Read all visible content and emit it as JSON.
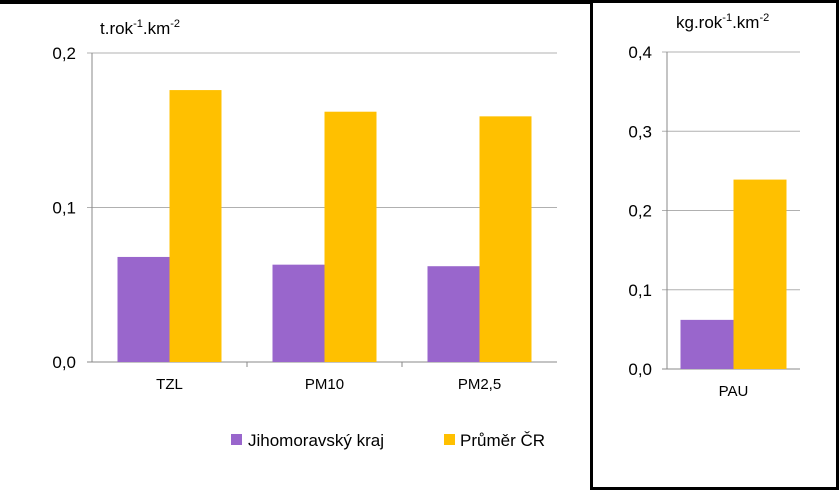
{
  "colors": {
    "series1": "#9966cc",
    "series2": "#ffc000",
    "grid": "#b0b0b0",
    "frame": "#000000"
  },
  "legend": {
    "position": "bottom",
    "items": [
      {
        "label": "Jihomoravský kraj",
        "color": "#9966cc"
      },
      {
        "label": "Průměr ČR",
        "color": "#ffc000"
      }
    ]
  },
  "chart_data": [
    {
      "type": "bar",
      "unit": {
        "base1": "t.rok",
        "exp1": "-1",
        "base2": ".km",
        "exp2": "-2"
      },
      "categories": [
        "TZL",
        "PM10",
        "PM2,5"
      ],
      "series": [
        {
          "name": "Jihomoravský kraj",
          "values": [
            0.068,
            0.063,
            0.062
          ]
        },
        {
          "name": "Průměr ČR",
          "values": [
            0.176,
            0.162,
            0.159
          ]
        }
      ],
      "ylim": [
        0,
        0.2
      ],
      "yticks": [
        "0,0",
        "0,1",
        "0,2"
      ],
      "grid": true
    },
    {
      "type": "bar",
      "unit": {
        "base1": "kg.rok",
        "exp1": "-1",
        "base2": ".km",
        "exp2": "-2"
      },
      "categories": [
        "PAU"
      ],
      "series": [
        {
          "name": "Jihomoravský kraj",
          "values": [
            0.062
          ]
        },
        {
          "name": "Průměr ČR",
          "values": [
            0.239
          ]
        }
      ],
      "ylim": [
        0,
        0.4
      ],
      "yticks": [
        "0,0",
        "0,1",
        "0,2",
        "0,3",
        "0,4"
      ],
      "grid": true
    }
  ]
}
